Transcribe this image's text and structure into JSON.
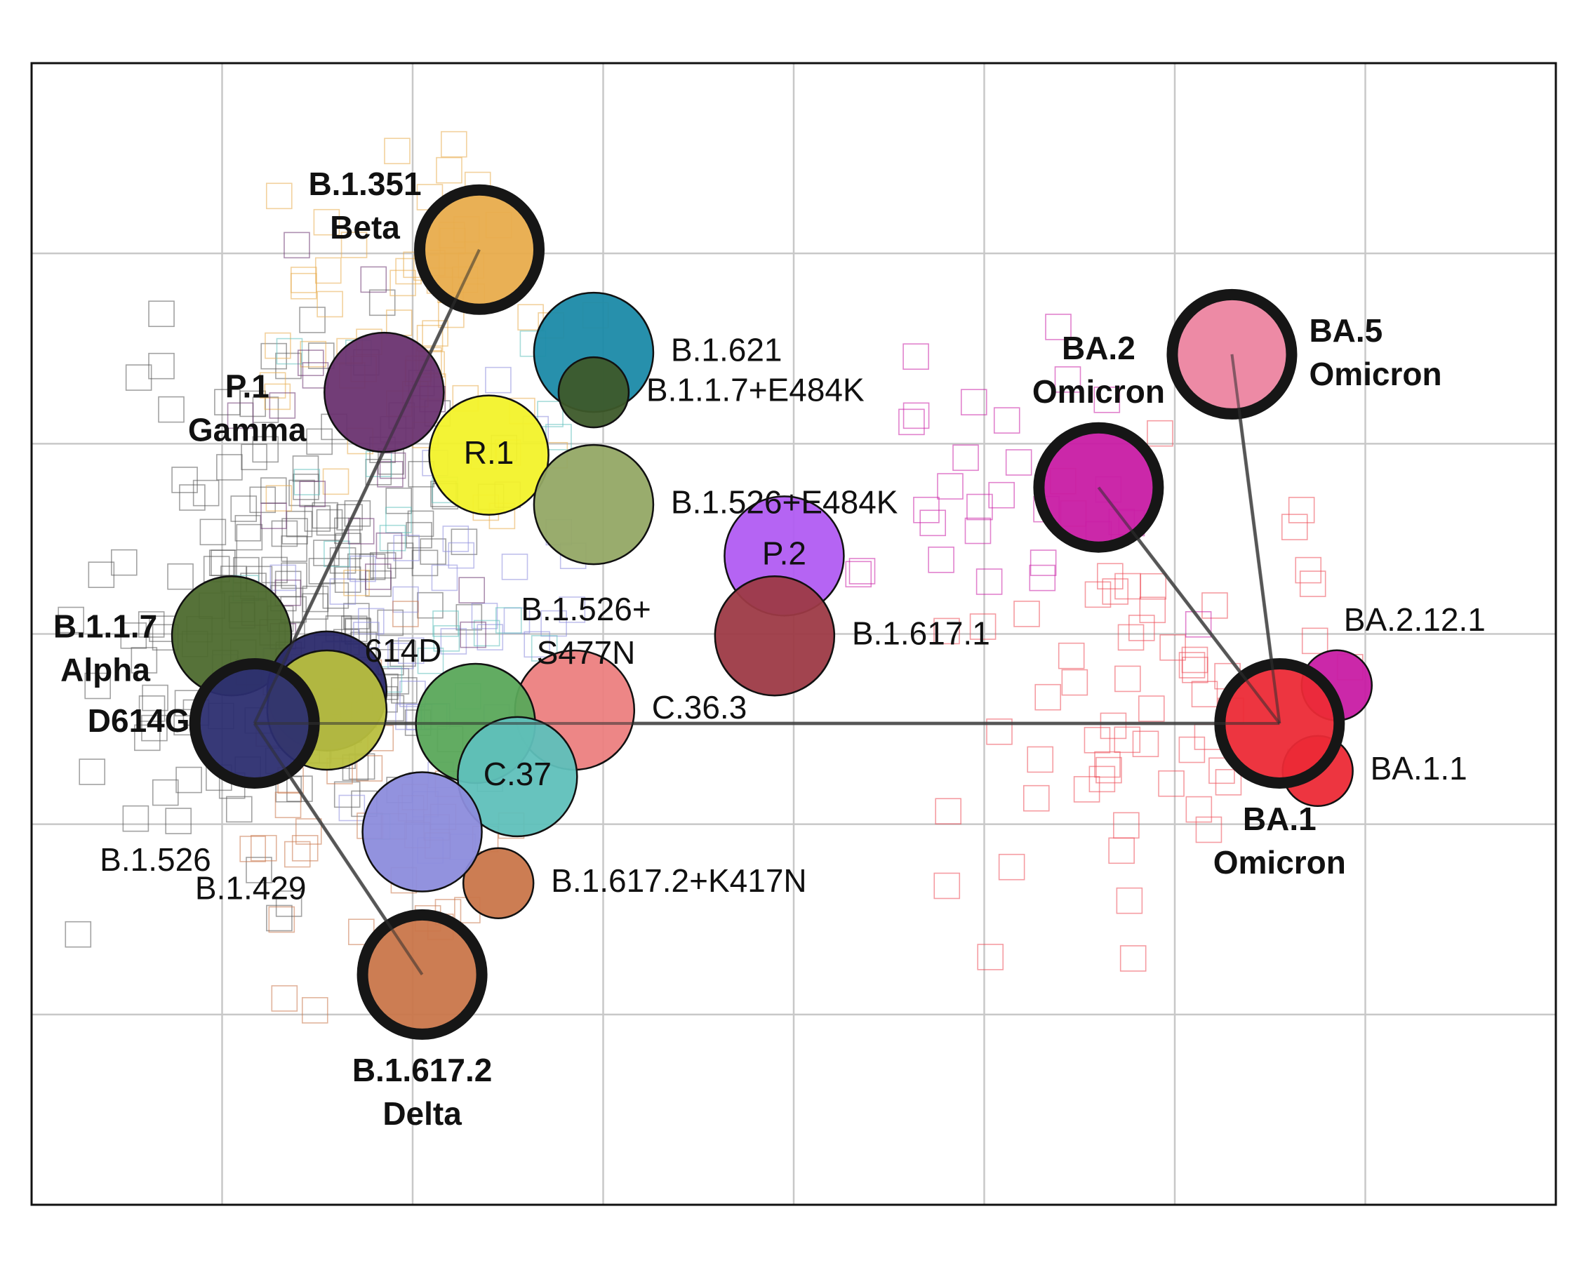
{
  "chart_data": {
    "type": "scatter",
    "title": "",
    "xlabel": "",
    "ylabel": "",
    "xlim": [
      0,
      8
    ],
    "ylim": [
      0,
      6
    ],
    "grid": true,
    "legend": "none",
    "variants": [
      {
        "id": "b1351",
        "lines": [
          "B.1.351",
          "Beta"
        ],
        "bold": true,
        "x": 2.35,
        "y": 5.02,
        "color": "#e8ac4c",
        "size": "large",
        "ring": true,
        "label_pos": "left"
      },
      {
        "id": "b1621",
        "lines": [
          "B.1.621"
        ],
        "bold": false,
        "x": 2.95,
        "y": 4.48,
        "color": "#1b8aa8",
        "size": "medium",
        "ring": false,
        "label_pos": "right"
      },
      {
        "id": "p1",
        "lines": [
          "P.1",
          "Gamma"
        ],
        "bold": true,
        "x": 1.85,
        "y": 4.27,
        "color": "#6a3370",
        "size": "medium",
        "ring": false,
        "label_pos": "left"
      },
      {
        "id": "b117e484k",
        "lines": [
          "B.1.1.7+E484K"
        ],
        "bold": false,
        "x": 2.95,
        "y": 4.27,
        "color": "#3d5a2a",
        "size": "small",
        "ring": false,
        "label_pos": "right"
      },
      {
        "id": "r1",
        "lines": [
          "R.1"
        ],
        "bold": false,
        "x": 2.4,
        "y": 3.94,
        "color": "#f2f22a",
        "size": "medium",
        "ring": false,
        "label_pos": "inside"
      },
      {
        "id": "b1526e484k",
        "lines": [
          "B.1.526+E484K"
        ],
        "bold": false,
        "x": 2.95,
        "y": 3.68,
        "color": "#93a865",
        "size": "medium",
        "ring": false,
        "label_pos": "right"
      },
      {
        "id": "p2",
        "lines": [
          "P.2"
        ],
        "bold": false,
        "x": 3.95,
        "y": 3.41,
        "color": "#b15cf2",
        "size": "medium",
        "ring": false,
        "label_pos": "inside"
      },
      {
        "id": "b16171",
        "lines": [
          "B.1.617.1"
        ],
        "bold": false,
        "x": 3.9,
        "y": 2.99,
        "color": "#9d3a46",
        "size": "medium",
        "ring": false,
        "label_pos": "right"
      },
      {
        "id": "b117",
        "lines": [
          "B.1.1.7",
          "Alpha"
        ],
        "bold": true,
        "x": 1.05,
        "y": 2.99,
        "color": "#4d6a2e",
        "size": "medium",
        "ring": false,
        "label_pos": "left"
      },
      {
        "id": "b1526s477n",
        "lines": [
          "B.1.526+",
          "S477N"
        ],
        "bold": false,
        "x": 1.55,
        "y": 2.7,
        "color": "#2b2a6b",
        "size": "medium",
        "ring": false,
        "label_pos": "none"
      },
      {
        "id": "b1429",
        "lines": [
          "B.1.429"
        ],
        "bold": false,
        "x": 1.55,
        "y": 2.6,
        "color": "#b8bf3e",
        "size": "medium",
        "ring": false,
        "label_pos": "none"
      },
      {
        "id": "c363",
        "lines": [
          "C.36.3"
        ],
        "bold": false,
        "x": 2.85,
        "y": 2.6,
        "color": "#ec8080",
        "size": "medium",
        "ring": false,
        "label_pos": "right"
      },
      {
        "id": "d614g",
        "lines": [
          "D614G"
        ],
        "bold": true,
        "x": 1.17,
        "y": 2.53,
        "color": "#2c2e70",
        "size": "large",
        "ring": true,
        "label_pos": "left"
      },
      {
        "id": "b1526",
        "lines": [
          "B.1.526"
        ],
        "bold": false,
        "x": 2.33,
        "y": 2.53,
        "color": "#5aa85a",
        "size": "medium",
        "ring": false,
        "label_pos": "none"
      },
      {
        "id": "c37",
        "lines": [
          "C.37"
        ],
        "bold": false,
        "x": 2.55,
        "y": 2.25,
        "color": "#5fc0bb",
        "size": "medium",
        "ring": false,
        "label_pos": "inside"
      },
      {
        "id": "b1617k",
        "lines": [
          "B.1.617.2+K417N"
        ],
        "bold": false,
        "x": 2.45,
        "y": 1.69,
        "color": "#c9764a",
        "size": "small",
        "ring": false,
        "label_pos": "right"
      },
      {
        "id": "b1429b",
        "lines": [
          ""
        ],
        "bold": false,
        "x": 2.05,
        "y": 1.96,
        "color": "#8c8cdc",
        "size": "medium",
        "ring": false,
        "label_pos": "none"
      },
      {
        "id": "b16172",
        "lines": [
          "B.1.617.2",
          "Delta"
        ],
        "bold": true,
        "x": 2.05,
        "y": 1.21,
        "color": "#c9764a",
        "size": "large",
        "ring": true,
        "label_pos": "below"
      },
      {
        "id": "ba2",
        "lines": [
          "BA.2",
          "Omicron"
        ],
        "bold": true,
        "x": 5.6,
        "y": 3.77,
        "color": "#c81ca4",
        "size": "large",
        "ring": true,
        "label_pos": "above"
      },
      {
        "id": "ba5",
        "lines": [
          "BA.5",
          "Omicron"
        ],
        "bold": true,
        "x": 6.3,
        "y": 4.47,
        "color": "#ec84a0",
        "size": "large",
        "ring": true,
        "label_pos": "right"
      },
      {
        "id": "ba2121",
        "lines": [
          "BA.2.12.1"
        ],
        "bold": false,
        "x": 6.85,
        "y": 2.73,
        "color": "#c81ca4",
        "size": "small",
        "ring": false,
        "label_pos": "above-right"
      },
      {
        "id": "ba1",
        "lines": [
          "BA.1",
          "Omicron"
        ],
        "bold": true,
        "x": 6.55,
        "y": 2.53,
        "color": "#ec2a36",
        "size": "large",
        "ring": true,
        "label_pos": "below"
      },
      {
        "id": "ba11",
        "lines": [
          "BA.1.1"
        ],
        "bold": false,
        "x": 6.75,
        "y": 2.28,
        "color": "#ec2a36",
        "size": "small",
        "ring": false,
        "label_pos": "right"
      }
    ],
    "extra_labels": [
      {
        "text": "614D",
        "x": 1.95,
        "y": 2.9
      },
      {
        "text": "B.1.526",
        "x": 0.65,
        "y": 1.8
      },
      {
        "text": "B.1.429",
        "x": 1.15,
        "y": 1.65
      }
    ],
    "connectors": [
      {
        "from": "d614g",
        "to": "b1351"
      },
      {
        "from": "d614g",
        "to": "b16172"
      },
      {
        "from": "d614g",
        "to": "ba1"
      },
      {
        "from": "ba1",
        "to": "ba2"
      },
      {
        "from": "ba1",
        "to": "ba5"
      }
    ]
  }
}
